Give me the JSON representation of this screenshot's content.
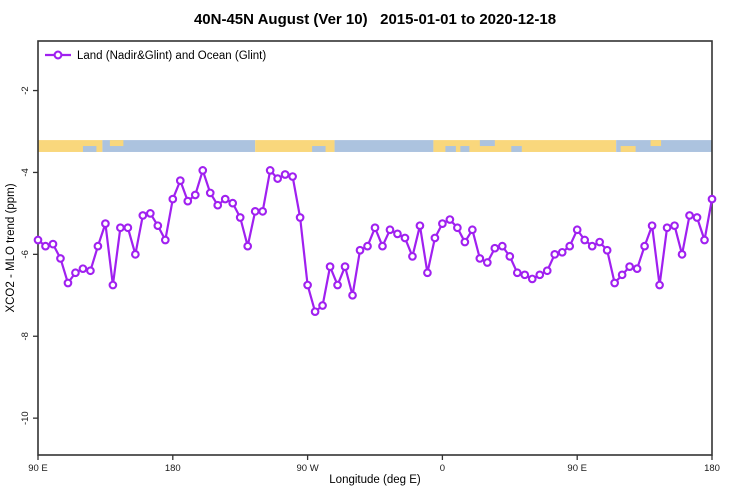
{
  "colors": {
    "line": "#A020F0",
    "marker_fill": "#FFFFFF",
    "land": "#F9D77C",
    "ocean": "#ACC3DF",
    "axis": "#333333",
    "text": "#000000"
  },
  "chart_data": {
    "type": "line",
    "title": "40N-45N August (Ver 10)   2015-01-01 to 2020-12-18",
    "xlabel": "Longitude (deg E)",
    "ylabel": "XCO2 - MLO trend (ppm)",
    "legend_label": "Land (Nadir&Glint) and Ocean (Glint)",
    "legend_position": "top-left",
    "grid": false,
    "x_axis": {
      "tick_labels": [
        "90 E",
        "180",
        "90 W",
        "0",
        "90 E",
        "180"
      ],
      "tick_offsets_deg": [
        0,
        90,
        180,
        270,
        360,
        450
      ],
      "span_deg": 450,
      "start_longitude": "90 E"
    },
    "y_axis": {
      "ticks": [
        -2,
        -4,
        -6,
        -8,
        -10
      ],
      "lim": [
        -10.9,
        -0.79
      ]
    },
    "series": [
      {
        "name": "Land (Nadir&Glint) and Ocean (Glint)",
        "x_offsets_deg": [
          0,
          5,
          10,
          15,
          20,
          25,
          30,
          35,
          40,
          45,
          50,
          55,
          60,
          65,
          70,
          75,
          80,
          85,
          90,
          95,
          100,
          105,
          110,
          115,
          120,
          125,
          130,
          135,
          140,
          145,
          150,
          155,
          160,
          165,
          170,
          175,
          180,
          185,
          190,
          195,
          200,
          205,
          210,
          215,
          220,
          225,
          230,
          235,
          240,
          245,
          250,
          255,
          260,
          265,
          270,
          275,
          280,
          285,
          290,
          295,
          300,
          305,
          310,
          315,
          320,
          325,
          330,
          335,
          340,
          345,
          350,
          355,
          360,
          365,
          370,
          375,
          380,
          385,
          390,
          395,
          400,
          405,
          410,
          415,
          420,
          425,
          430,
          435,
          440,
          445,
          450
        ],
        "values": [
          -5.65,
          -5.8,
          -5.75,
          -6.1,
          -6.7,
          -6.45,
          -6.35,
          -6.4,
          -5.8,
          -5.25,
          -6.75,
          -5.35,
          -5.35,
          -6.0,
          -5.05,
          -5.0,
          -5.3,
          -5.65,
          -4.65,
          -4.2,
          -4.7,
          -4.55,
          -3.95,
          -4.5,
          -4.8,
          -4.65,
          -4.75,
          -5.1,
          -5.8,
          -4.95,
          -4.95,
          -3.95,
          -4.15,
          -4.05,
          -4.1,
          -5.1,
          -6.75,
          -7.4,
          -7.25,
          -6.3,
          -6.75,
          -6.3,
          -7.0,
          -5.9,
          -5.8,
          -5.35,
          -5.8,
          -5.4,
          -5.5,
          -5.6,
          -6.05,
          -5.3,
          -6.45,
          -5.6,
          -5.25,
          -5.15,
          -5.35,
          -5.7,
          -5.4,
          -6.1,
          -6.2,
          -5.85,
          -5.8,
          -6.05,
          -6.45,
          -6.5,
          -6.6,
          -6.5,
          -6.4,
          -6.0,
          -5.95,
          -5.8,
          -5.4,
          -5.65,
          -5.8,
          -5.7,
          -5.9,
          -6.7,
          -6.5,
          -6.3,
          -6.35,
          -5.8,
          -5.3,
          -6.75,
          -5.35,
          -5.3,
          -6.0,
          -5.05,
          -5.1,
          -5.65,
          -4.65
        ]
      }
    ],
    "land_ocean_strip": {
      "description": "horizontal land/ocean mask strip across longitudes",
      "value_range": [
        -3.5,
        -3.21
      ],
      "segments": [
        {
          "deg": [
            0,
            43
          ],
          "type": "land"
        },
        {
          "deg": [
            43,
            145
          ],
          "type": "ocean"
        },
        {
          "deg": [
            145,
            198
          ],
          "type": "land"
        },
        {
          "deg": [
            198,
            264
          ],
          "type": "ocean"
        },
        {
          "deg": [
            264,
            386
          ],
          "type": "land"
        },
        {
          "deg": [
            386,
            450
          ],
          "type": "ocean"
        }
      ],
      "speckles": [
        {
          "deg": [
            30,
            39
          ],
          "type": "ocean",
          "pos": "bottom"
        },
        {
          "deg": [
            48,
            57
          ],
          "type": "land",
          "pos": "top"
        },
        {
          "deg": [
            183,
            192
          ],
          "type": "ocean",
          "pos": "bottom"
        },
        {
          "deg": [
            272,
            279
          ],
          "type": "ocean",
          "pos": "bottom"
        },
        {
          "deg": [
            282,
            288
          ],
          "type": "ocean",
          "pos": "bottom"
        },
        {
          "deg": [
            295,
            305
          ],
          "type": "ocean",
          "pos": "top"
        },
        {
          "deg": [
            316,
            323
          ],
          "type": "ocean",
          "pos": "bottom"
        },
        {
          "deg": [
            389,
            399
          ],
          "type": "land",
          "pos": "bottom"
        },
        {
          "deg": [
            409,
            416
          ],
          "type": "land",
          "pos": "top"
        }
      ]
    }
  }
}
